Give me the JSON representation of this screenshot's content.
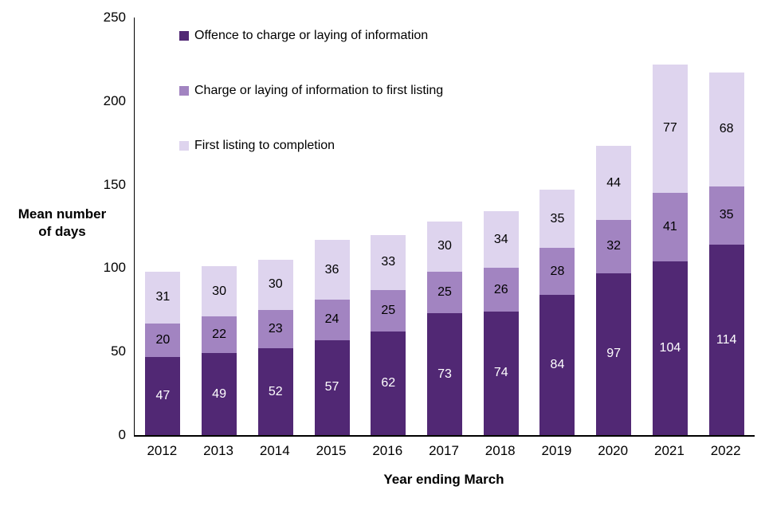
{
  "chart_data": {
    "type": "bar",
    "stacked": true,
    "title": "",
    "xlabel": "Year ending March",
    "ylabel": "Mean number of days",
    "categories": [
      "2012",
      "2013",
      "2014",
      "2015",
      "2016",
      "2017",
      "2018",
      "2019",
      "2020",
      "2021",
      "2022"
    ],
    "series": [
      {
        "name": "Offence to charge or laying of information",
        "color": "#512874",
        "label_color": "#ffffff",
        "values": [
          47,
          49,
          52,
          57,
          62,
          73,
          74,
          84,
          97,
          104,
          114
        ]
      },
      {
        "name": "Charge or laying of information to first listing",
        "color": "#a284c1",
        "label_color": "#000000",
        "values": [
          20,
          22,
          23,
          24,
          25,
          25,
          26,
          28,
          32,
          41,
          35
        ]
      },
      {
        "name": "First listing to completion",
        "color": "#ded4ee",
        "label_color": "#000000",
        "values": [
          31,
          30,
          30,
          36,
          33,
          30,
          34,
          35,
          44,
          77,
          68
        ]
      }
    ],
    "ylim": [
      0,
      250
    ],
    "yticks": [
      0,
      50,
      100,
      150,
      200,
      250
    ],
    "grid": false,
    "legend_position": "top-left-inside"
  },
  "axes": {
    "y_title_line1": "Mean number",
    "y_title_line2": "of days",
    "x_title": "Year ending March"
  }
}
